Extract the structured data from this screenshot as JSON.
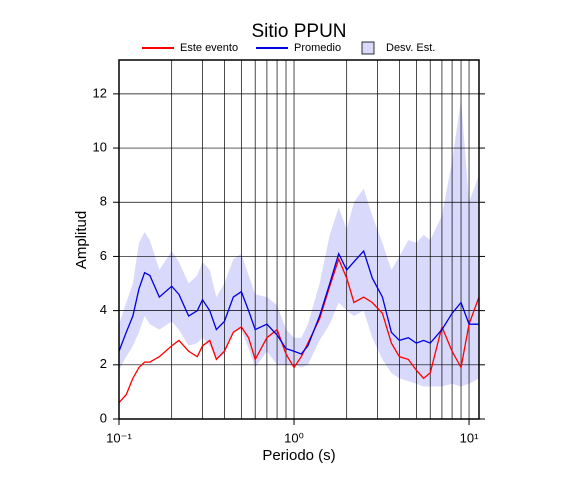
{
  "chart_data": {
    "type": "line",
    "title": "Sitio PPUN",
    "x_label": "Periodo (s)",
    "y_label": "Amplitud",
    "log_x": true,
    "grid": true,
    "legend": "top",
    "xlim": [
      0.1,
      11.4
    ],
    "ylim": [
      0,
      13.25
    ],
    "xticks": [
      {
        "value": 0.1,
        "label": "10⁻¹"
      },
      {
        "value": 1,
        "label": "10⁰"
      },
      {
        "value": 10,
        "label": "10¹"
      }
    ],
    "yticks": [
      0,
      2,
      4,
      6,
      8,
      10,
      12
    ],
    "x": [
      0.1,
      0.11,
      0.12,
      0.13,
      0.14,
      0.15,
      0.17,
      0.2,
      0.22,
      0.25,
      0.28,
      0.3,
      0.33,
      0.36,
      0.4,
      0.45,
      0.5,
      0.55,
      0.6,
      0.7,
      0.8,
      0.9,
      1.0,
      1.1,
      1.2,
      1.4,
      1.6,
      1.8,
      2.0,
      2.2,
      2.5,
      2.8,
      3.2,
      3.6,
      4.0,
      4.5,
      5,
      5.5,
      6,
      7,
      8,
      9,
      10,
      11.4
    ],
    "series": [
      {
        "name": "Este evento",
        "color": "#ff0000",
        "values": [
          0.6,
          0.9,
          1.5,
          1.9,
          2.1,
          2.1,
          2.3,
          2.7,
          2.9,
          2.5,
          2.3,
          2.7,
          2.9,
          2.2,
          2.5,
          3.2,
          3.4,
          3.0,
          2.2,
          3.0,
          3.3,
          2.4,
          1.9,
          2.3,
          2.8,
          3.7,
          4.9,
          5.9,
          5.2,
          4.3,
          4.5,
          4.3,
          3.9,
          2.8,
          2.3,
          2.2,
          1.8,
          1.5,
          1.7,
          3.4,
          2.5,
          1.9,
          3.5,
          4.5
        ]
      },
      {
        "name": "Promedio",
        "color": "#0000e0",
        "values": [
          2.5,
          3.2,
          3.8,
          4.8,
          5.4,
          5.3,
          4.5,
          4.9,
          4.6,
          3.8,
          4.0,
          4.4,
          4.0,
          3.3,
          3.6,
          4.5,
          4.7,
          4.0,
          3.3,
          3.5,
          3.1,
          2.6,
          2.5,
          2.4,
          2.7,
          3.8,
          5.0,
          6.1,
          5.5,
          5.8,
          6.2,
          5.2,
          4.5,
          3.2,
          2.9,
          3.0,
          2.8,
          2.9,
          2.8,
          3.3,
          3.9,
          4.3,
          3.5,
          3.5
        ]
      },
      {
        "name": "Desv. Est.",
        "color": "#d9d9fb",
        "upper": [
          3.5,
          4.3,
          5.0,
          6.5,
          6.9,
          6.6,
          5.5,
          6.2,
          5.8,
          5.0,
          5.3,
          5.8,
          5.5,
          4.5,
          5.0,
          5.9,
          6.1,
          5.3,
          4.6,
          4.5,
          4.2,
          3.3,
          3.0,
          3.0,
          3.5,
          5.0,
          6.8,
          7.8,
          7.0,
          8.0,
          8.5,
          7.5,
          6.5,
          5.5,
          6.0,
          6.6,
          6.5,
          6.8,
          6.6,
          7.5,
          9.5,
          11.8,
          8.0,
          9.0
        ],
        "lower": [
          1.8,
          2.3,
          2.7,
          3.2,
          3.8,
          3.5,
          3.3,
          3.6,
          3.3,
          2.7,
          2.8,
          3.0,
          2.7,
          2.2,
          2.4,
          3.2,
          3.3,
          2.6,
          1.9,
          2.5,
          2.0,
          2.0,
          2.0,
          1.9,
          2.0,
          2.9,
          3.5,
          4.3,
          4.0,
          3.8,
          4.0,
          3.0,
          2.2,
          1.7,
          1.5,
          1.4,
          1.3,
          1.2,
          1.2,
          1.2,
          1.3,
          1.2,
          1.3,
          1.5
        ]
      }
    ]
  }
}
